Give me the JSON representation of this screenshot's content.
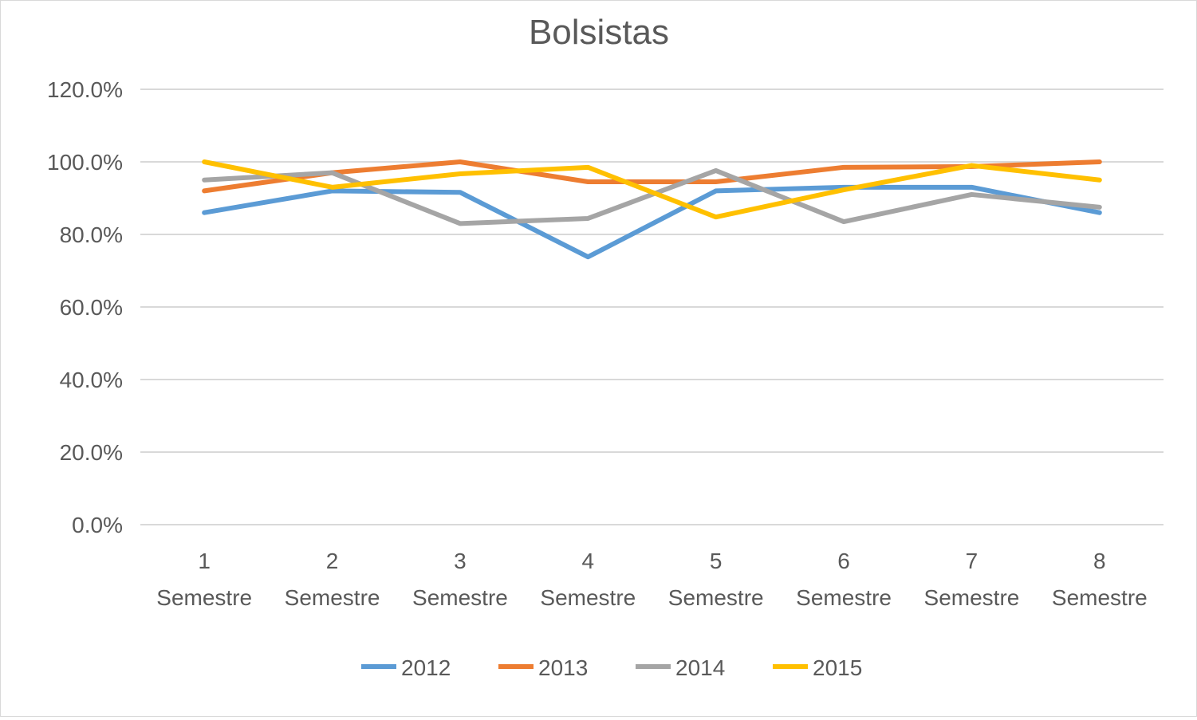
{
  "chart_data": {
    "type": "line",
    "title": "Bolsistas",
    "categories": [
      "1 Semestre",
      "2 Semestre",
      "3 Semestre",
      "4 Semestre",
      "5 Semestre",
      "6 Semestre",
      "7 Semestre",
      "8 Semestre"
    ],
    "yticks": [
      "0.0%",
      "20.0%",
      "40.0%",
      "60.0%",
      "80.0%",
      "100.0%",
      "120.0%"
    ],
    "ylim": [
      0,
      120
    ],
    "yunit": "%",
    "grid": true,
    "legend_position": "bottom",
    "series": [
      {
        "name": "2012",
        "color": "#5b9bd5",
        "values": [
          86,
          92,
          91.6,
          73.8,
          92,
          93,
          93,
          86
        ]
      },
      {
        "name": "2013",
        "color": "#ed7d31",
        "values": [
          92,
          97,
          100,
          94.5,
          94.5,
          98.5,
          98.7,
          100
        ]
      },
      {
        "name": "2014",
        "color": "#a5a5a5",
        "values": [
          95,
          97,
          83,
          84.4,
          97.6,
          83.5,
          91,
          87.5
        ]
      },
      {
        "name": "2015",
        "color": "#ffc000",
        "values": [
          100,
          93,
          96.7,
          98.5,
          84.8,
          92.3,
          99,
          95
        ]
      }
    ]
  }
}
